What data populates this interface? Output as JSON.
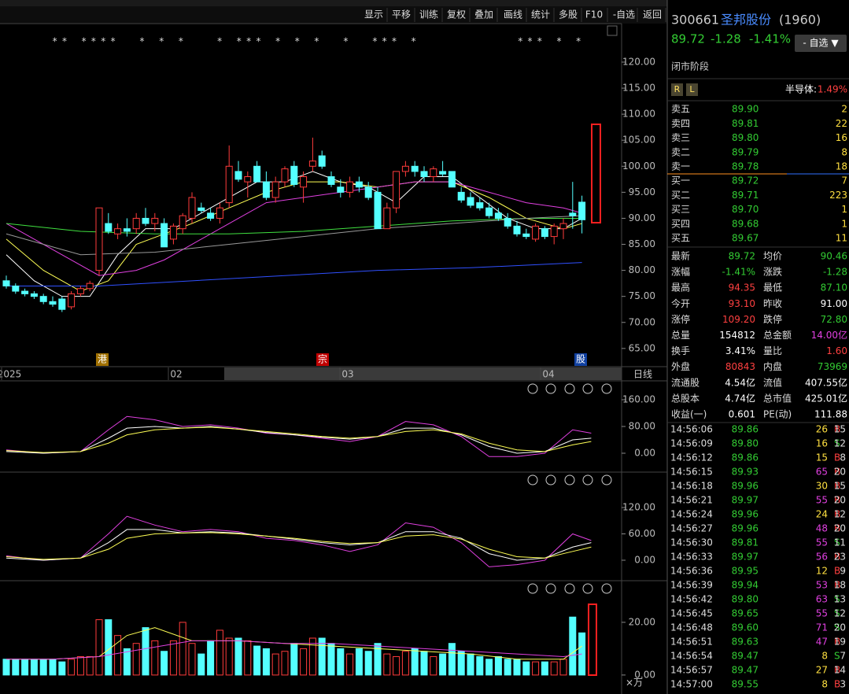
{
  "toolbar": [
    "显示",
    "平移",
    "训练",
    "复权",
    "叠加",
    "画线",
    "统计",
    "多股",
    "F10",
    "-自选",
    "返回"
  ],
  "main_chart": {
    "type": "candlestick",
    "stars": "** ****  * * *   * *** * * *  *  *** *          *** * *",
    "ylim": [
      61.5,
      127.4
    ],
    "yticks": [
      {
        "value": 120,
        "label": "120.00"
      },
      {
        "value": 115,
        "label": "115.00"
      },
      {
        "value": 110,
        "label": "110.00"
      },
      {
        "value": 105,
        "label": "105.00"
      },
      {
        "value": 100,
        "label": "100.00"
      },
      {
        "value": 95,
        "label": "95.00"
      },
      {
        "value": 90,
        "label": "90.00"
      },
      {
        "value": 85,
        "label": "85.00"
      },
      {
        "value": 80,
        "label": "80.00"
      },
      {
        "value": 75,
        "label": "75.00"
      },
      {
        "value": 70,
        "label": "70.00"
      },
      {
        "value": 65,
        "label": "65.00"
      }
    ],
    "up_color": "#ff3b3b",
    "down_color": "#54ffff",
    "candles": [
      [
        78,
        79,
        76.5,
        77
      ],
      [
        77,
        77.5,
        75.5,
        76
      ],
      [
        76,
        76.5,
        75,
        75.5
      ],
      [
        75.5,
        76,
        74.5,
        75
      ],
      [
        75,
        75.5,
        73.5,
        74
      ],
      [
        74,
        75,
        73,
        73.5
      ],
      [
        74.5,
        75,
        72,
        72.5
      ],
      [
        73,
        76,
        72.5,
        75.5
      ],
      [
        75.5,
        77,
        75,
        76.5
      ],
      [
        76.5,
        78,
        76,
        77.5
      ],
      [
        80,
        92,
        79,
        92
      ],
      [
        89,
        91,
        87,
        87.5
      ],
      [
        87,
        89,
        86,
        88
      ],
      [
        88,
        90,
        86.5,
        87.5
      ],
      [
        88,
        91,
        87,
        90
      ],
      [
        90,
        92,
        88.5,
        89
      ],
      [
        89,
        91,
        87.5,
        90
      ],
      [
        89,
        90,
        84.5,
        84.5
      ],
      [
        86,
        89,
        85,
        88.5
      ],
      [
        88,
        91,
        87,
        90.5
      ],
      [
        90,
        95,
        89,
        94
      ],
      [
        92,
        93,
        91,
        91.5
      ],
      [
        91,
        92,
        89.5,
        90
      ],
      [
        90,
        93,
        89,
        92
      ],
      [
        93,
        104,
        92,
        100
      ],
      [
        99,
        101,
        97,
        97.5
      ],
      [
        97,
        99,
        94,
        98
      ],
      [
        100,
        101,
        97,
        97
      ],
      [
        97,
        99,
        93.5,
        94
      ],
      [
        94,
        98,
        93,
        97
      ],
      [
        97,
        100,
        96,
        99.5
      ],
      [
        100,
        101,
        96,
        96.5
      ],
      [
        96,
        99,
        93,
        98
      ],
      [
        100,
        105.5,
        99,
        101
      ],
      [
        102,
        103,
        99.5,
        100
      ],
      [
        98,
        99,
        96,
        96.5
      ],
      [
        96,
        97.5,
        94,
        95
      ],
      [
        95,
        98,
        94,
        97
      ],
      [
        97,
        98,
        95,
        96
      ],
      [
        96,
        97,
        93.5,
        94
      ],
      [
        95,
        96,
        88,
        88
      ],
      [
        88,
        93,
        88,
        92
      ],
      [
        92,
        99,
        91,
        99
      ],
      [
        99,
        101,
        98,
        100
      ],
      [
        100,
        101,
        98,
        99
      ],
      [
        99,
        100,
        97,
        98
      ],
      [
        98,
        100,
        97,
        99.5
      ],
      [
        99,
        101,
        98,
        98.5
      ],
      [
        99,
        99,
        96,
        96
      ],
      [
        95,
        96,
        93,
        93.5
      ],
      [
        94,
        95,
        92,
        92.5
      ],
      [
        93,
        94,
        91.5,
        92
      ],
      [
        92,
        93,
        90,
        90.5
      ],
      [
        91,
        92,
        89.5,
        90
      ],
      [
        90,
        91,
        88,
        88.5
      ],
      [
        88.5,
        89.5,
        86.5,
        87
      ],
      [
        87,
        88,
        86,
        86.5
      ],
      [
        86,
        89,
        85.5,
        88.5
      ],
      [
        88,
        88.5,
        86,
        86.5
      ],
      [
        86.5,
        89,
        85,
        88.5
      ],
      [
        88,
        90,
        86,
        89
      ],
      [
        91,
        97,
        88,
        90.5
      ],
      [
        93.1,
        94.35,
        87.1,
        89.72
      ]
    ],
    "lines": [
      {
        "color": "#ffffff",
        "x": [
          0,
          3,
          6,
          9,
          12,
          15,
          18,
          21,
          24,
          27,
          30,
          33,
          36,
          39,
          42,
          45,
          48,
          51,
          54,
          57,
          60,
          62
        ],
        "values": [
          83,
          78,
          75,
          75,
          83,
          88,
          88,
          91,
          94,
          97,
          97,
          99,
          97,
          96,
          93,
          98,
          98,
          94,
          90,
          88,
          88,
          90
        ]
      },
      {
        "color": "#ffff55",
        "x": [
          0,
          4,
          8,
          11,
          14,
          17,
          20,
          24,
          28,
          32,
          36,
          40,
          44,
          48,
          52,
          56,
          60,
          62
        ],
        "values": [
          86,
          80,
          76,
          78,
          85,
          87,
          89,
          92,
          95,
          97,
          97,
          96,
          97,
          97,
          94,
          90,
          88,
          89
        ]
      },
      {
        "color": "#e040e0",
        "x": [
          0,
          5,
          10,
          14,
          17,
          20,
          24,
          28,
          32,
          36,
          40,
          44,
          48,
          52,
          56,
          60,
          62
        ],
        "values": [
          89,
          84,
          79,
          80,
          82,
          85,
          89,
          93,
          94,
          95,
          96,
          97,
          97,
          95,
          93,
          92,
          91
        ]
      },
      {
        "color": "#40e040",
        "x": [
          0,
          8,
          16,
          24,
          32,
          40,
          48,
          56,
          62
        ],
        "values": [
          89,
          87.5,
          87,
          87,
          87.5,
          88.5,
          89.5,
          90,
          90
        ]
      },
      {
        "color": "#999999",
        "x": [
          0,
          8,
          16,
          24,
          32,
          40,
          48,
          56,
          62
        ],
        "values": [
          87,
          83,
          83.5,
          85,
          86.5,
          88,
          89,
          90,
          90.5
        ]
      },
      {
        "color": "#3050ff",
        "x": [
          0,
          10,
          20,
          30,
          40,
          50,
          62
        ],
        "values": [
          77,
          77,
          78,
          79,
          80,
          80.5,
          81.5
        ]
      }
    ]
  },
  "markers": [
    "港",
    "宗",
    "股"
  ],
  "dates": [
    "2025",
    "02",
    "03",
    "04"
  ],
  "period": "日线",
  "indicator1": {
    "type": "line",
    "ylim": [
      -56.5,
      216.5
    ],
    "yticks": [
      {
        "value": 160,
        "label": "160.00"
      },
      {
        "value": 80,
        "label": "80.00"
      },
      {
        "value": 0,
        "label": "0.00"
      }
    ],
    "series": [
      {
        "color": "#e040e0",
        "x": [
          0,
          4,
          8,
          11,
          13,
          16,
          19,
          22,
          25,
          28,
          31,
          34,
          37,
          40,
          43,
          46,
          49,
          52,
          55,
          58,
          61,
          63
        ],
        "values": [
          10,
          0,
          5,
          70,
          110,
          100,
          80,
          85,
          75,
          60,
          55,
          45,
          35,
          50,
          95,
          85,
          50,
          -10,
          -10,
          0,
          70,
          60
        ]
      },
      {
        "color": "#ffffff",
        "x": [
          0,
          4,
          8,
          11,
          13,
          16,
          19,
          22,
          25,
          28,
          31,
          34,
          37,
          40,
          43,
          46,
          49,
          52,
          55,
          58,
          61,
          63
        ],
        "values": [
          5,
          0,
          5,
          45,
          75,
          80,
          75,
          80,
          72,
          62,
          55,
          48,
          42,
          50,
          75,
          75,
          55,
          20,
          0,
          5,
          40,
          45
        ]
      },
      {
        "color": "#ffff55",
        "x": [
          0,
          4,
          8,
          11,
          13,
          16,
          19,
          22,
          25,
          28,
          31,
          34,
          37,
          40,
          43,
          46,
          49,
          52,
          55,
          58,
          61,
          63
        ],
        "values": [
          8,
          2,
          5,
          30,
          55,
          70,
          75,
          78,
          72,
          65,
          58,
          50,
          45,
          50,
          65,
          70,
          58,
          30,
          10,
          5,
          25,
          35
        ]
      }
    ]
  },
  "indicator2": {
    "type": "line",
    "ylim": [
      -46.6,
      200.6
    ],
    "yticks": [
      {
        "value": 120,
        "label": "120.00"
      },
      {
        "value": 60,
        "label": "60.00"
      },
      {
        "value": 0,
        "label": "0.00"
      }
    ],
    "series": [
      {
        "color": "#e040e0",
        "x": [
          0,
          4,
          8,
          11,
          13,
          16,
          19,
          22,
          25,
          28,
          31,
          34,
          37,
          40,
          43,
          46,
          49,
          52,
          55,
          58,
          61,
          63
        ],
        "values": [
          10,
          0,
          5,
          60,
          100,
          80,
          65,
          70,
          65,
          50,
          45,
          35,
          20,
          35,
          85,
          75,
          40,
          -15,
          -10,
          0,
          60,
          45
        ]
      },
      {
        "color": "#ffffff",
        "x": [
          0,
          4,
          8,
          11,
          13,
          16,
          19,
          22,
          25,
          28,
          31,
          34,
          37,
          40,
          43,
          46,
          49,
          52,
          55,
          58,
          61,
          63
        ],
        "values": [
          5,
          0,
          5,
          40,
          70,
          70,
          62,
          65,
          62,
          55,
          48,
          40,
          35,
          40,
          65,
          65,
          50,
          15,
          0,
          5,
          30,
          40
        ]
      },
      {
        "color": "#ffff55",
        "x": [
          0,
          4,
          8,
          11,
          13,
          16,
          19,
          22,
          25,
          28,
          31,
          34,
          37,
          40,
          43,
          46,
          49,
          52,
          55,
          58,
          61,
          63
        ],
        "values": [
          8,
          2,
          5,
          25,
          50,
          60,
          62,
          63,
          60,
          55,
          50,
          43,
          38,
          40,
          55,
          58,
          48,
          25,
          8,
          5,
          20,
          30
        ]
      }
    ]
  },
  "volume": {
    "type": "bar",
    "ylim": [
      -7.2,
      35.8
    ],
    "yticks": [
      {
        "value": 20,
        "label": "20.00"
      },
      {
        "value": 0,
        "label": "0.00"
      }
    ],
    "unit": "×万",
    "values": [
      6,
      6,
      6,
      6,
      6,
      6,
      5,
      6,
      7,
      7,
      21,
      21,
      15,
      10,
      12,
      18,
      13,
      9,
      13,
      20,
      12,
      8,
      13,
      17,
      14,
      14,
      13,
      11,
      10,
      8,
      9,
      12,
      10,
      14,
      14,
      12,
      10,
      8,
      10,
      9,
      12,
      8,
      7,
      9,
      10,
      9,
      7,
      8,
      12,
      9,
      8,
      7,
      6,
      7,
      6,
      6,
      5,
      5,
      5,
      5,
      6,
      22,
      16
    ],
    "lines": [
      {
        "color": "#ffff55",
        "x": [
          0,
          5,
          10,
          13,
          16,
          20,
          25,
          30,
          35,
          40,
          45,
          50,
          55,
          60,
          62
        ],
        "values": [
          6,
          6,
          7,
          15,
          18,
          13,
          13,
          12,
          11,
          10,
          9,
          8,
          6,
          6,
          11
        ]
      },
      {
        "color": "#e040e0",
        "x": [
          0,
          5,
          10,
          15,
          20,
          25,
          30,
          35,
          40,
          45,
          50,
          55,
          60,
          62
        ],
        "values": [
          6,
          6,
          7,
          10,
          13,
          13,
          12,
          12,
          11,
          10,
          9,
          8,
          7,
          8
        ]
      }
    ]
  },
  "quote": {
    "code": "300661",
    "name": "圣邦股份",
    "extra": "(1960)",
    "price": "89.72",
    "change": "-1.28",
    "pct": "-1.41%",
    "button": "- 自选 ▼",
    "status": "闭市阶段",
    "tags": [
      "R",
      "L"
    ],
    "sector": "半导体:",
    "sector_pct": "1.49%"
  },
  "orderbook": {
    "sell": [
      [
        "卖五",
        "89.90",
        "2"
      ],
      [
        "卖四",
        "89.81",
        "22"
      ],
      [
        "卖三",
        "89.80",
        "16"
      ],
      [
        "卖二",
        "89.79",
        "8"
      ],
      [
        "卖一",
        "89.78",
        "18"
      ]
    ],
    "buy": [
      [
        "买一",
        "89.72",
        "7"
      ],
      [
        "买二",
        "89.71",
        "223"
      ],
      [
        "买三",
        "89.70",
        "1"
      ],
      [
        "买四",
        "89.68",
        "1"
      ],
      [
        "买五",
        "89.67",
        "11"
      ]
    ]
  },
  "stats": [
    [
      [
        "最新",
        "89.72",
        "#3c3"
      ],
      [
        "均价",
        "90.46",
        "#3c3"
      ]
    ],
    [
      [
        "涨幅",
        "-1.41%",
        "#3c3"
      ],
      [
        "涨跌",
        "-1.28",
        "#3c3"
      ]
    ],
    [
      [
        "最高",
        "94.35",
        "#ff4040"
      ],
      [
        "最低",
        "87.10",
        "#3c3"
      ]
    ],
    [
      [
        "今开",
        "93.10",
        "#ff4040"
      ],
      [
        "昨收",
        "91.00",
        "#fff"
      ]
    ],
    [
      [
        "涨停",
        "109.20",
        "#ff4040"
      ],
      [
        "跌停",
        "72.80",
        "#3c3"
      ]
    ],
    [
      [
        "总量",
        "154812",
        "#fff"
      ],
      [
        "总金额",
        "14.00亿",
        "#e040e0"
      ]
    ],
    [
      [
        "换手",
        "3.41%",
        "#fff"
      ],
      [
        "量比",
        "1.60",
        "#ff4040"
      ]
    ],
    [
      [
        "外盘",
        "80843",
        "#ff4040"
      ],
      [
        "内盘",
        "73969",
        "#3c3"
      ]
    ],
    [
      [
        "流通股",
        "4.54亿",
        "#fff"
      ],
      [
        "流值",
        "407.55亿",
        "#fff"
      ]
    ],
    [
      [
        "总股本",
        "4.74亿",
        "#fff"
      ],
      [
        "总市值",
        "425.01亿",
        "#fff"
      ]
    ],
    [
      [
        "收益(一)",
        "0.601",
        "#fff"
      ],
      [
        "PE(动)",
        "111.88",
        "#fff"
      ]
    ]
  ],
  "ticks": [
    [
      "14:56:06",
      "89.86",
      "26",
      "B",
      "15"
    ],
    [
      "14:56:09",
      "89.80",
      "16",
      "S",
      "12"
    ],
    [
      "14:56:12",
      "89.86",
      "15",
      "B",
      "8"
    ],
    [
      "14:56:15",
      "89.93",
      "65",
      "B",
      "20"
    ],
    [
      "14:56:18",
      "89.96",
      "30",
      "B",
      "15"
    ],
    [
      "14:56:21",
      "89.97",
      "55",
      "B",
      "20"
    ],
    [
      "14:56:24",
      "89.96",
      "24",
      "B",
      "12"
    ],
    [
      "14:56:27",
      "89.96",
      "48",
      "B",
      "20"
    ],
    [
      "14:56:30",
      "89.81",
      "55",
      "S",
      "11"
    ],
    [
      "14:56:33",
      "89.97",
      "56",
      "B",
      "23"
    ],
    [
      "14:56:36",
      "89.95",
      "12",
      "B",
      "9"
    ],
    [
      "14:56:39",
      "89.94",
      "53",
      "B",
      "18"
    ],
    [
      "14:56:42",
      "89.80",
      "63",
      "S",
      "13"
    ],
    [
      "14:56:45",
      "89.65",
      "55",
      "S",
      "12"
    ],
    [
      "14:56:48",
      "89.60",
      "71",
      "S",
      "20"
    ],
    [
      "14:56:51",
      "89.63",
      "47",
      "B",
      "19"
    ],
    [
      "14:56:54",
      "89.47",
      "8",
      "S",
      "7"
    ],
    [
      "14:56:57",
      "89.47",
      "27",
      "B",
      "14"
    ],
    [
      "14:57:00",
      "89.55",
      "8",
      "B",
      "3"
    ]
  ]
}
